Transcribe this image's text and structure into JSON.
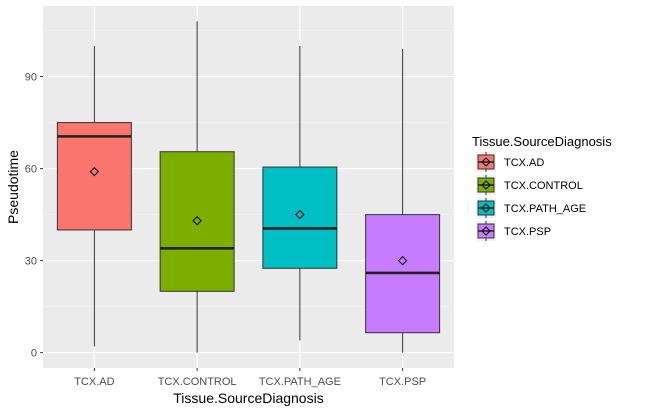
{
  "chart_data": {
    "type": "boxplot",
    "xlabel": "Tissue.SourceDiagnosis",
    "ylabel": "Pseudotime",
    "ylim": [
      -5,
      113
    ],
    "yticks": [
      0,
      30,
      60,
      90
    ],
    "grid": true,
    "legend": {
      "title": "Tissue.SourceDiagnosis",
      "placement": "right"
    },
    "categories": [
      "TCX.AD",
      "TCX.CONTROL",
      "TCX.PATH_AGE",
      "TCX.PSP"
    ],
    "series": [
      {
        "name": "TCX.AD",
        "color": "#F8766D",
        "min": 2,
        "q1": 40,
        "median": 70.5,
        "q3": 75,
        "max": 100,
        "mean": 59
      },
      {
        "name": "TCX.CONTROL",
        "color": "#7CAE00",
        "min": 0,
        "q1": 20,
        "median": 34,
        "q3": 65.5,
        "max": 108,
        "mean": 43
      },
      {
        "name": "TCX.PATH_AGE",
        "color": "#00BFC4",
        "min": 4,
        "q1": 27.5,
        "median": 40.5,
        "q3": 60.5,
        "max": 100,
        "mean": 45
      },
      {
        "name": "TCX.PSP",
        "color": "#C77CFF",
        "min": 0,
        "q1": 6.5,
        "median": 26,
        "q3": 45,
        "max": 99,
        "mean": 30
      }
    ]
  }
}
